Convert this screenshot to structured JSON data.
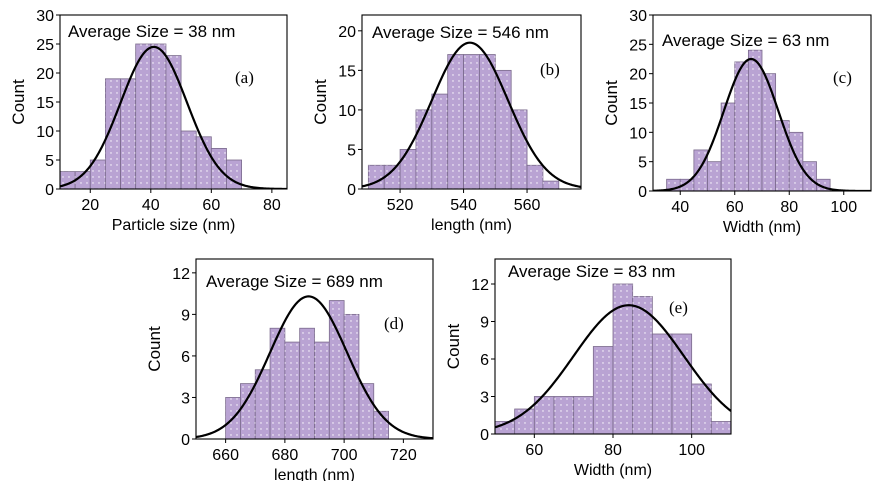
{
  "colors": {
    "bar_fill": "#b9a3d3",
    "bar_stroke": "#7a6a8c",
    "curve": "#000000",
    "dots": "#ffffff"
  },
  "chart_data": [
    {
      "type": "bar",
      "panel_label": "(a)",
      "annotation": "Average Size = 38 nm",
      "xlabel": "Particle size (nm)",
      "ylabel": "Count",
      "xlim": [
        10,
        85
      ],
      "ylim": [
        0,
        30
      ],
      "xticks": [
        20,
        40,
        60,
        80
      ],
      "yticks": [
        0,
        5,
        10,
        15,
        20,
        25,
        30
      ],
      "bin_width": 5,
      "bin_starts": [
        10,
        15,
        20,
        25,
        30,
        35,
        40,
        45,
        50,
        55,
        60,
        65
      ],
      "values": [
        3,
        3,
        5,
        19,
        19,
        25,
        25,
        23,
        10,
        9,
        7,
        5
      ],
      "fit": {
        "type": "gaussian",
        "peak": 41,
        "sigma": 11,
        "amplitude": 24.5
      },
      "grid": false
    },
    {
      "type": "bar",
      "panel_label": "(b)",
      "annotation": "Average Size = 546 nm",
      "xlabel": "length (nm)",
      "ylabel": "Count",
      "xlim": [
        508,
        577
      ],
      "ylim": [
        0,
        22
      ],
      "xticks": [
        520,
        540,
        560
      ],
      "yticks": [
        0,
        5,
        10,
        15,
        20
      ],
      "bin_width": 5,
      "bin_starts": [
        510,
        515,
        520,
        525,
        530,
        535,
        540,
        545,
        550,
        555,
        560,
        565,
        570
      ],
      "values": [
        3,
        3,
        5,
        10,
        12,
        17,
        17,
        17,
        15,
        10,
        3,
        1,
        0
      ],
      "fit": {
        "type": "gaussian",
        "peak": 542,
        "sigma": 12,
        "amplitude": 18.5
      },
      "grid": false
    },
    {
      "type": "bar",
      "panel_label": "(c)",
      "annotation": "Average Size = 63 nm",
      "xlabel": "Width (nm)",
      "ylabel": "Count",
      "xlim": [
        30,
        110
      ],
      "ylim": [
        0,
        30
      ],
      "xticks": [
        40,
        60,
        80,
        100
      ],
      "yticks": [
        0,
        5,
        10,
        15,
        20,
        25,
        30
      ],
      "bin_width": 5,
      "bin_starts": [
        35,
        40,
        45,
        50,
        55,
        60,
        65,
        70,
        75,
        80,
        85,
        90
      ],
      "values": [
        2,
        2,
        7,
        5,
        15,
        22,
        24,
        20,
        12,
        10,
        5,
        2
      ],
      "fit": {
        "type": "gaussian",
        "peak": 66,
        "sigma": 10,
        "amplitude": 22.5
      },
      "grid": false
    },
    {
      "type": "bar",
      "panel_label": "(d)",
      "annotation": "Average Size = 689 nm",
      "xlabel": "length (nm)",
      "ylabel": "Count",
      "xlim": [
        650,
        730
      ],
      "ylim": [
        0,
        13
      ],
      "xticks": [
        660,
        680,
        700,
        720
      ],
      "yticks": [
        0,
        3,
        6,
        9,
        12
      ],
      "bin_width": 5,
      "bin_starts": [
        660,
        665,
        670,
        675,
        680,
        685,
        690,
        695,
        700,
        705,
        710
      ],
      "values": [
        3,
        4,
        5,
        8,
        7,
        8,
        7,
        10,
        9,
        4,
        2
      ],
      "fit": {
        "type": "gaussian",
        "peak": 688,
        "sigma": 13,
        "amplitude": 10.3
      },
      "grid": false
    },
    {
      "type": "bar",
      "panel_label": "(e)",
      "annotation": "Average Size = 83 nm",
      "xlabel": "Width (nm)",
      "ylabel": "Count",
      "xlim": [
        50,
        110
      ],
      "ylim": [
        0,
        14
      ],
      "xticks": [
        60,
        80,
        100
      ],
      "yticks": [
        0,
        3,
        6,
        9,
        12
      ],
      "bin_width": 5,
      "bin_starts": [
        50,
        55,
        60,
        65,
        70,
        75,
        80,
        85,
        90,
        95,
        100,
        105
      ],
      "values": [
        1,
        2,
        3,
        3,
        3,
        7,
        12,
        11,
        8,
        8,
        4,
        1
      ],
      "fit": {
        "type": "gaussian",
        "peak": 84,
        "sigma": 14,
        "amplitude": 10.3
      },
      "grid": false
    }
  ]
}
